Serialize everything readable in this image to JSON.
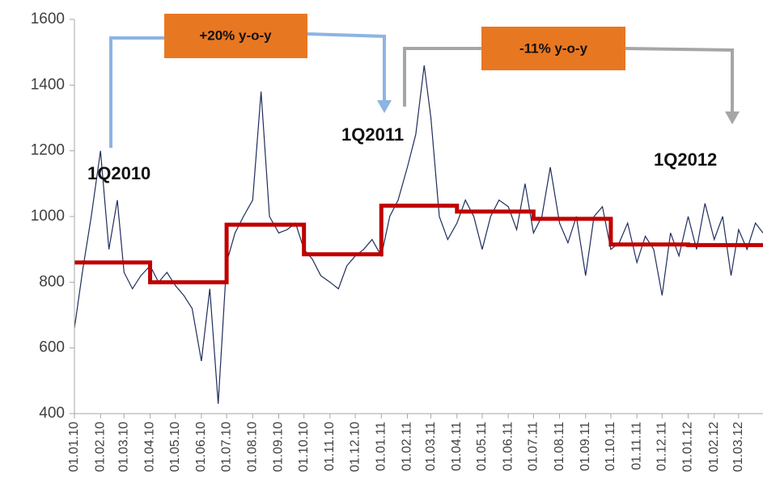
{
  "chart_data": {
    "type": "line",
    "annotations": [
      "+20% y-o-y",
      "-11% y-o-y",
      "1Q2010",
      "1Q2011",
      "1Q2012"
    ],
    "xlim": [
      "01.01.10",
      "30.03.12"
    ],
    "xticks": [
      "01.01.10",
      "01.02.10",
      "01.03.10",
      "01.04.10",
      "01.05.10",
      "01.06.10",
      "01.07.10",
      "01.08.10",
      "01.09.10",
      "01.10.10",
      "01.11.10",
      "01.12.10",
      "01.01.11",
      "01.02.11",
      "01.03.11",
      "01.04.11",
      "01.05.11",
      "01.06.11",
      "01.07.11",
      "01.08.11",
      "01.09.11",
      "01.10.11",
      "01.11.11",
      "01.12.11",
      "01.01.12",
      "01.02.12",
      "01.03.12"
    ],
    "ylim": [
      400,
      1600
    ],
    "yticks": [
      400,
      600,
      800,
      1000,
      1200,
      1400,
      1600
    ],
    "series": [
      {
        "color": "#1f2d5c",
        "step": false,
        "x": [
          "01.01.10",
          "11.01.10",
          "21.01.10",
          "01.02.10",
          "11.02.10",
          "21.02.10",
          "01.03.10",
          "11.03.10",
          "21.03.10",
          "01.04.10",
          "11.04.10",
          "21.04.10",
          "01.05.10",
          "11.05.10",
          "21.05.10",
          "01.06.10",
          "11.06.10",
          "21.06.10",
          "01.07.10",
          "11.07.10",
          "21.07.10",
          "01.08.10",
          "11.08.10",
          "21.08.10",
          "01.09.10",
          "11.09.10",
          "21.09.10",
          "01.10.10",
          "11.10.10",
          "21.10.10",
          "01.11.10",
          "11.11.10",
          "21.11.10",
          "01.12.10",
          "11.12.10",
          "21.12.10",
          "01.01.11",
          "11.01.11",
          "21.01.11",
          "01.02.11",
          "11.02.11",
          "21.02.11",
          "01.03.11",
          "11.03.11",
          "21.03.11",
          "01.04.11",
          "11.04.11",
          "21.04.11",
          "01.05.11",
          "11.05.11",
          "21.05.11",
          "01.06.11",
          "11.06.11",
          "21.06.11",
          "01.07.11",
          "11.07.11",
          "21.07.11",
          "01.08.11",
          "11.08.11",
          "21.08.11",
          "01.09.11",
          "11.09.11",
          "21.09.11",
          "01.10.11",
          "11.10.11",
          "21.10.11",
          "01.11.11",
          "11.11.11",
          "21.11.11",
          "01.12.11",
          "11.12.11",
          "21.12.11",
          "01.01.12",
          "11.01.12",
          "21.01.12",
          "01.02.12",
          "11.02.12",
          "21.02.12",
          "01.03.12",
          "11.03.12",
          "21.03.12",
          "30.03.12"
        ],
        "values": [
          660,
          840,
          1000,
          1200,
          900,
          1050,
          830,
          780,
          820,
          850,
          800,
          830,
          790,
          760,
          720,
          560,
          780,
          430,
          860,
          950,
          1000,
          1050,
          1380,
          1000,
          950,
          960,
          980,
          900,
          870,
          820,
          800,
          780,
          850,
          880,
          900,
          930,
          880,
          1000,
          1050,
          1150,
          1250,
          1460,
          1300,
          1000,
          930,
          980,
          1050,
          1000,
          900,
          1000,
          1050,
          1030,
          960,
          1100,
          950,
          1000,
          1150,
          980,
          920,
          1000,
          820,
          1000,
          1030,
          900,
          920,
          980,
          860,
          940,
          900,
          760,
          950,
          880,
          1000,
          900,
          1040,
          930,
          1000,
          820,
          960,
          900,
          980,
          950
        ]
      },
      {
        "color": "#c00000",
        "step": true,
        "x": [
          "01.01.10",
          "01.04.10",
          "01.07.10",
          "01.10.10",
          "01.01.11",
          "01.04.11",
          "01.07.11",
          "01.10.11",
          "01.01.12"
        ],
        "values": [
          860,
          800,
          975,
          885,
          1033,
          1015,
          993,
          915,
          913
        ]
      }
    ]
  }
}
